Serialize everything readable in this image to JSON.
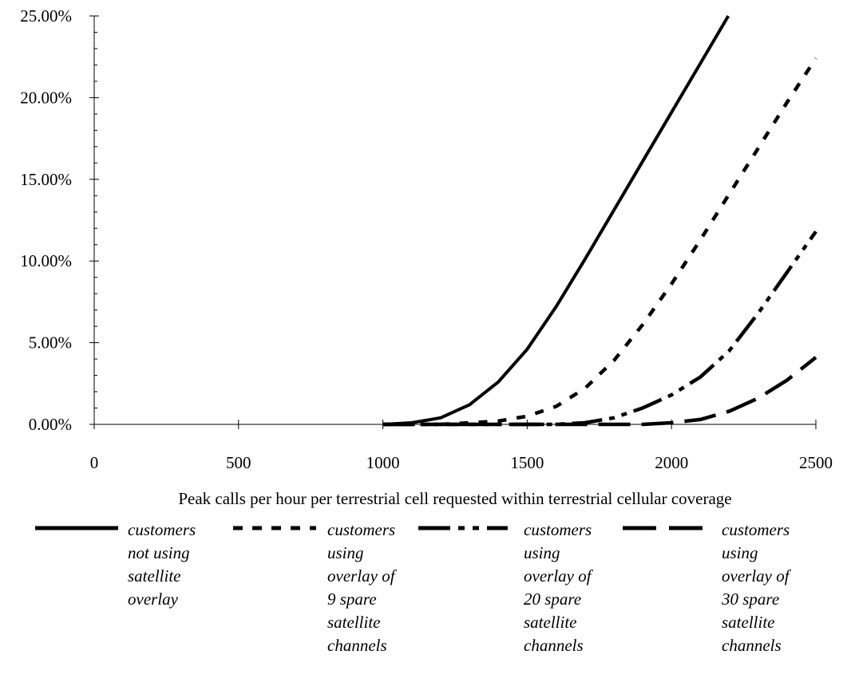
{
  "chart_data": {
    "type": "line",
    "title": "",
    "xlabel": "Peak calls per hour per terrestrial cell requested within terrestrial cellular coverage",
    "ylabel": "",
    "xlim": [
      0,
      2500
    ],
    "ylim": [
      0,
      0.25
    ],
    "x_ticks": [
      "0",
      "500",
      "1000",
      "1500",
      "2000",
      "2500"
    ],
    "y_ticks": [
      "0.00%",
      "5.00%",
      "10.00%",
      "15.00%",
      "20.00%",
      "25.00%"
    ],
    "grid": false,
    "legend_position": "bottom",
    "x": [
      1000,
      1100,
      1200,
      1300,
      1400,
      1500,
      1600,
      1700,
      1800,
      1900,
      2000,
      2100,
      2200,
      2300,
      2400,
      2500
    ],
    "series": [
      {
        "name": "customers not using satellite overlay",
        "style": "solid",
        "values": [
          0.0,
          0.001,
          0.004,
          0.012,
          0.026,
          0.046,
          0.072,
          0.101,
          0.131,
          0.161,
          0.191,
          0.221,
          null,
          null,
          null,
          null
        ]
      },
      {
        "name": "customers using overlay of 9 spare satellite channels",
        "style": "dotted",
        "values": [
          0.0,
          0.0,
          0.0,
          0.001,
          0.002,
          0.005,
          0.011,
          0.022,
          0.039,
          0.061,
          0.086,
          0.113,
          0.141,
          0.169,
          0.197,
          0.224
        ]
      },
      {
        "name": "customers using overlay of 20 spare satellite channels",
        "style": "dash-dot-dot",
        "values": [
          0.0,
          0.0,
          0.0,
          0.0,
          0.0,
          0.0,
          0.0,
          0.001,
          0.004,
          0.01,
          0.018,
          0.029,
          0.045,
          0.068,
          0.093,
          0.118
        ]
      },
      {
        "name": "customers using overlay of 30 spare satellite channels",
        "style": "dashed",
        "values": [
          0.0,
          0.0,
          0.0,
          0.0,
          0.0,
          0.0,
          0.0,
          0.0,
          0.0,
          0.0,
          0.001,
          0.003,
          0.008,
          0.016,
          0.027,
          0.041
        ]
      }
    ]
  },
  "legend_items": [
    {
      "text": "customers not using satellite overlay"
    },
    {
      "text": "customers using overlay of 9 spare satellite channels"
    },
    {
      "text": "customers using overlay of 20 spare satellite channels"
    },
    {
      "text": "customers using overlay of 30 spare satellite channels"
    }
  ]
}
